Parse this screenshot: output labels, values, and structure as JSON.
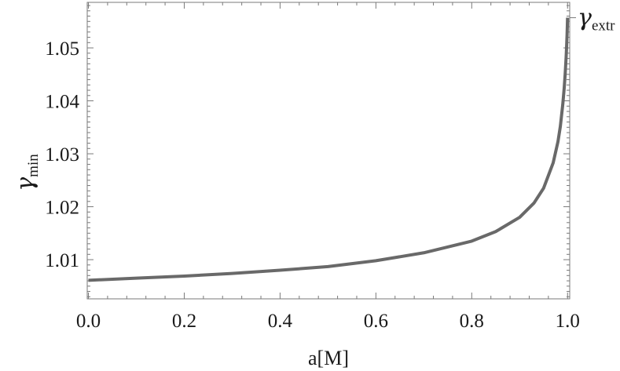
{
  "chart_data": {
    "type": "line",
    "xlabel": "a[M]",
    "ylabel": {
      "symbol": "γ",
      "subscript": "min"
    },
    "right_annotation": {
      "symbol": "γ",
      "subscript": "extr",
      "value": 1.0557
    },
    "xlim": [
      -0.0025,
      1.0045
    ],
    "ylim": [
      1.0026,
      1.0586
    ],
    "x_ticks": [
      {
        "value": 0.0,
        "label": "0.0"
      },
      {
        "value": 0.2,
        "label": "0.2"
      },
      {
        "value": 0.4,
        "label": "0.4"
      },
      {
        "value": 0.6,
        "label": "0.6"
      },
      {
        "value": 0.8,
        "label": "0.8"
      },
      {
        "value": 1.0,
        "label": "1.0"
      }
    ],
    "y_ticks": [
      {
        "value": 1.01,
        "label": "1.01"
      },
      {
        "value": 1.02,
        "label": "1.02"
      },
      {
        "value": 1.03,
        "label": "1.03"
      },
      {
        "value": 1.04,
        "label": "1.04"
      },
      {
        "value": 1.05,
        "label": "1.05"
      }
    ],
    "grid": false,
    "frame": true,
    "line_color": "#696969",
    "series": [
      {
        "x": [
          0.0,
          0.1,
          0.2,
          0.3,
          0.4,
          0.5,
          0.6,
          0.7,
          0.8,
          0.85,
          0.9,
          0.93,
          0.95,
          0.97,
          0.98,
          0.985,
          0.99,
          0.993,
          0.995,
          0.997,
          0.998,
          0.999,
          0.9995,
          1.0
        ],
        "y": [
          1.0061,
          1.0065,
          1.0069,
          1.0074,
          1.008,
          1.0087,
          1.0098,
          1.0113,
          1.0135,
          1.0153,
          1.018,
          1.0207,
          1.0235,
          1.0283,
          1.0323,
          1.0352,
          1.0393,
          1.0424,
          1.045,
          1.0482,
          1.0502,
          1.0525,
          1.054,
          1.0557
        ]
      }
    ]
  }
}
